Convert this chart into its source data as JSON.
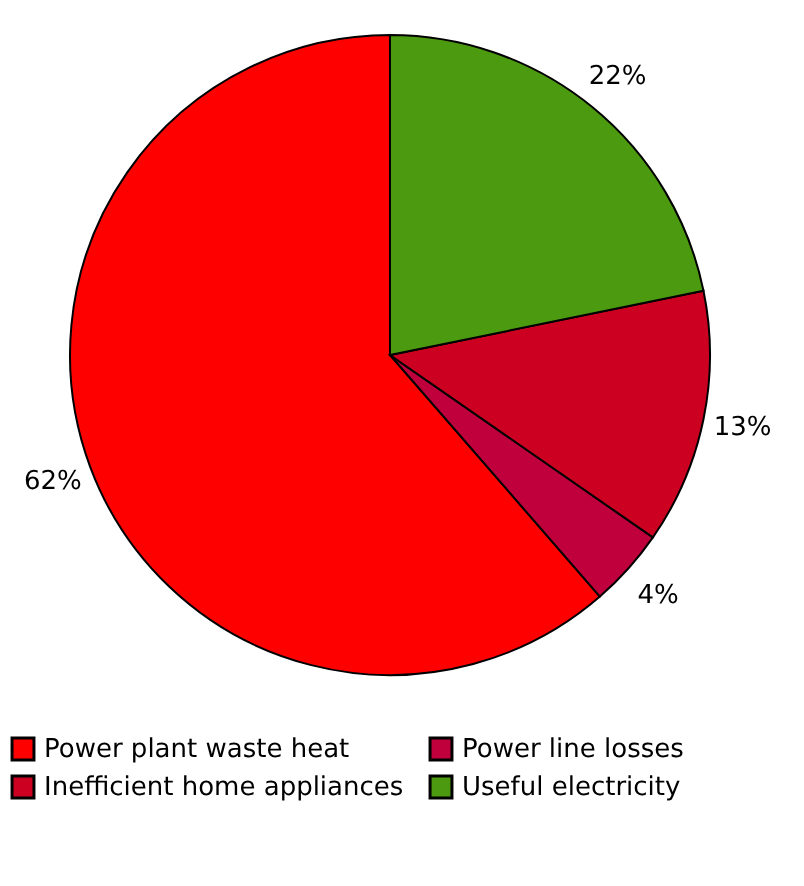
{
  "chart_data": {
    "type": "pie",
    "categories": [
      "Power plant waste heat",
      "Power line losses",
      "Inefficient home appliances",
      "Useful electricity"
    ],
    "values": [
      62,
      4,
      13,
      22
    ],
    "colors": [
      "#ff0000",
      "#c0003c",
      "#cc0020",
      "#4c9a10"
    ],
    "value_labels": [
      "62%",
      "4%",
      "13%",
      "22%"
    ],
    "legend": "bottom"
  }
}
